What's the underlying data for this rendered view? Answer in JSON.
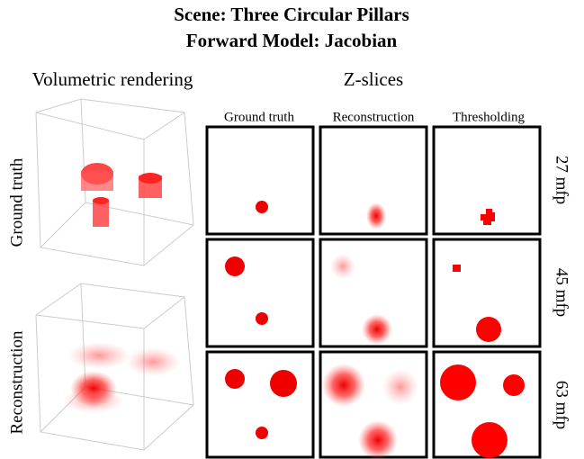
{
  "title": {
    "line1": "Scene: Three Circular Pillars",
    "line2": "Forward Model: Jacobian"
  },
  "sections": {
    "volumetric": "Volumetric rendering",
    "zslices": "Z-slices"
  },
  "columns": [
    "Ground truth",
    "Reconstruction",
    "Thresholding"
  ],
  "volume_rows": [
    "Ground truth",
    "Reconstruction"
  ],
  "slice_rows": [
    "27 mfp",
    "45 mfp",
    "63 mfp"
  ]
}
